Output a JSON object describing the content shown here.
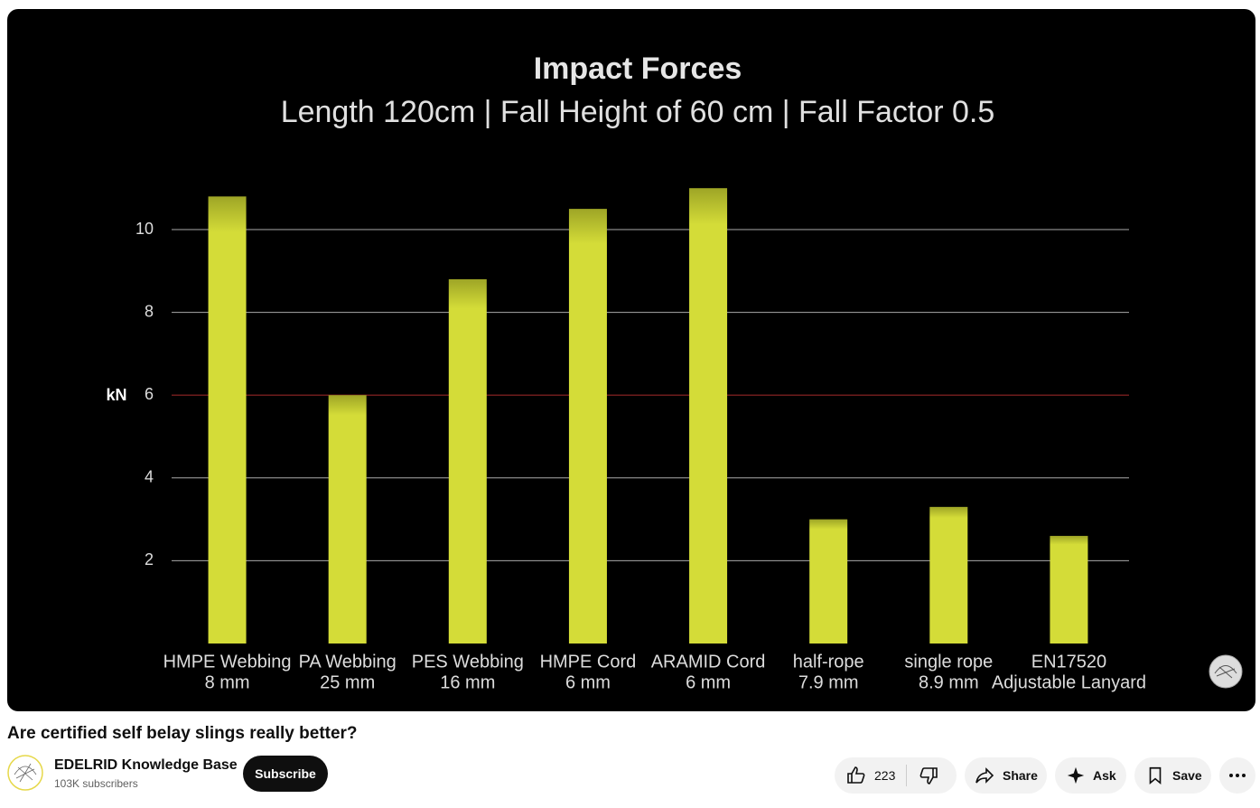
{
  "chart_data": {
    "type": "bar",
    "title": "Impact Forces",
    "subtitle": "Length 120cm | Fall Height of 60 cm | Fall Factor 0.5",
    "y_label": "kN",
    "categories": [
      [
        "HMPE Webbing",
        "8 mm"
      ],
      [
        "PA Webbing",
        "25 mm"
      ],
      [
        "PES Webbing",
        "16 mm"
      ],
      [
        "HMPE Cord",
        "6 mm"
      ],
      [
        "ARAMID Cord",
        "6 mm"
      ],
      [
        "half-rope",
        "7.9 mm"
      ],
      [
        "single rope",
        "8.9 mm"
      ],
      [
        "EN17520",
        "Adjustable Lanyard"
      ]
    ],
    "values": [
      10.8,
      6.0,
      8.8,
      10.5,
      11.0,
      3.0,
      3.3,
      2.6
    ],
    "color": "#d4dc38",
    "ylim": [
      0,
      11.5
    ],
    "yticks": [
      2,
      4,
      6,
      8,
      10
    ],
    "grid": true,
    "reference_line": {
      "value": 6,
      "color": "#6e1c1c"
    }
  },
  "video": {
    "title": "Are certified self belay slings really better?",
    "channel": "EDELRID Knowledge Base",
    "subscribers": "103K subscribers",
    "subscribe": "Subscribe",
    "likes": 223,
    "share": "Share",
    "ask": "Ask",
    "save": "Save"
  }
}
